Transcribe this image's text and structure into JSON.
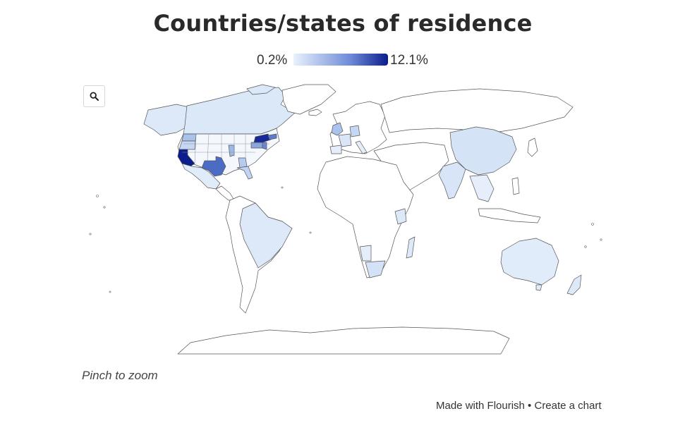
{
  "title": "Countries/states of residence",
  "legend": {
    "min_label": "0.2%",
    "max_label": "12.1%",
    "min_value": 0.2,
    "max_value": 12.1,
    "color_low": "#e8f1fc",
    "color_high": "#0b1d8c"
  },
  "zoom_icon": "search-icon",
  "hint": "Pinch to zoom",
  "footer": {
    "made_with": "Made with Flourish",
    "separator": " • ",
    "create": "Create a chart"
  },
  "chart_data": {
    "type": "choropleth",
    "unit": "%",
    "regions_shaded": [
      "California",
      "New York",
      "Texas",
      "Massachusetts",
      "New Jersey",
      "Pennsylvania",
      "Illinois",
      "Washington",
      "Oregon",
      "Florida",
      "Georgia",
      "Canada",
      "United Kingdom",
      "Germany",
      "China",
      "India",
      "Brazil",
      "Australia",
      "South Africa",
      "Kenya"
    ]
  }
}
